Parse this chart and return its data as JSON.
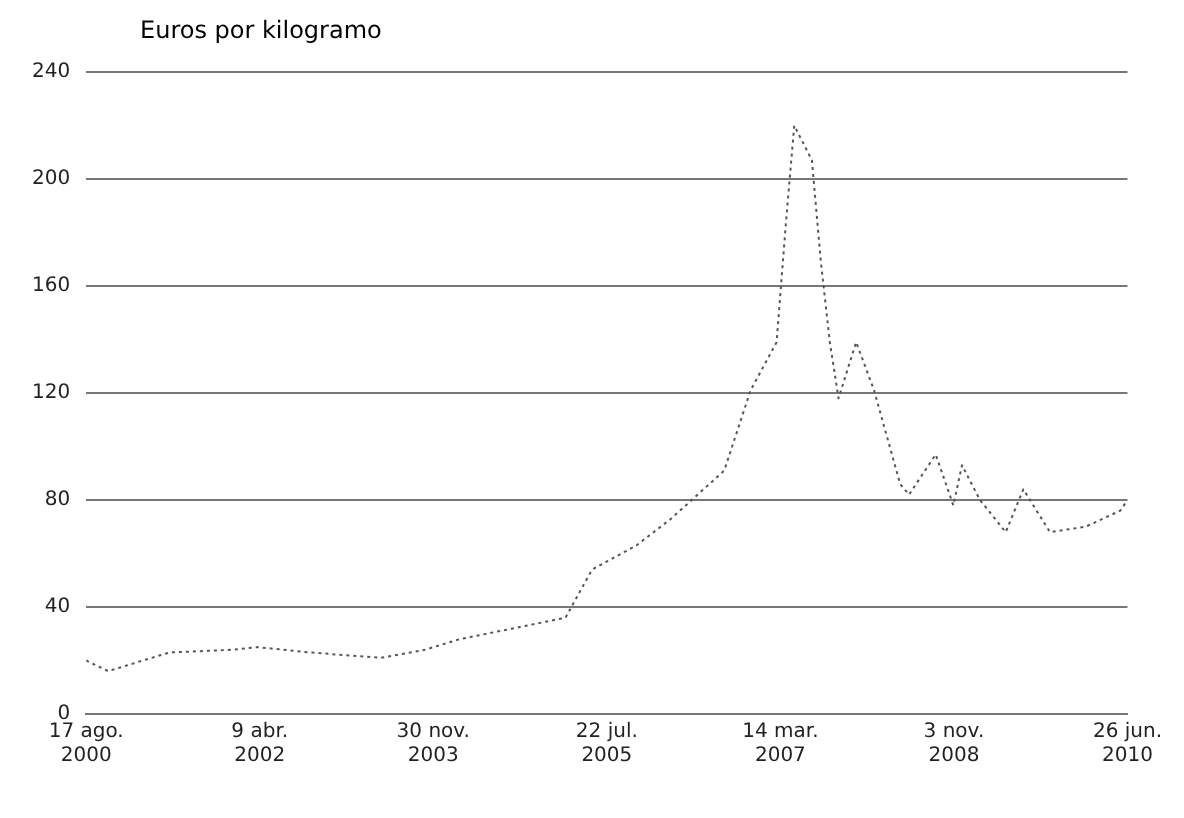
{
  "chart_data": {
    "type": "line",
    "ylabel": "Euros por kilogramo",
    "x": [
      "2000-08-17",
      "2000-11",
      "2001-03",
      "2001-06",
      "2002-01",
      "2002-04",
      "2002-10",
      "2003-06",
      "2003-11",
      "2004-03",
      "2004-09",
      "2005-03",
      "2005-06",
      "2005-11",
      "2006-03",
      "2006-09",
      "2006-12",
      "2007-03",
      "2007-04",
      "2007-05",
      "2007-07",
      "2007-08",
      "2007-09",
      "2007-10",
      "2007-12",
      "2008-02",
      "2008-05",
      "2008-06",
      "2008-09",
      "2008-11",
      "2008-12",
      "2009-02",
      "2009-05",
      "2009-07",
      "2009-10",
      "2010-02",
      "2010-06",
      "2010-06-26"
    ],
    "series": [
      {
        "color": "#555555",
        "values": [
          20,
          16,
          20,
          23,
          24,
          25,
          23,
          21,
          24,
          28,
          32,
          36,
          54,
          63,
          73,
          91,
          121,
          139,
          182,
          220,
          207,
          169,
          139,
          118,
          139,
          121,
          86,
          82,
          97,
          78,
          93,
          80,
          68,
          84,
          68,
          70,
          76,
          80
        ]
      }
    ],
    "xlim": [
      "2000-08-17",
      "2010-06-26"
    ],
    "xticks": [
      {
        "value": "2000-08-17",
        "label": "17 ago.\n2000"
      },
      {
        "value": "2002-04-09",
        "label": "9 abr.\n2002"
      },
      {
        "value": "2003-11-30",
        "label": "30 nov.\n2003"
      },
      {
        "value": "2005-07-22",
        "label": "22 jul.\n2005"
      },
      {
        "value": "2007-03-14",
        "label": "14 mar.\n2007"
      },
      {
        "value": "2008-11-03",
        "label": "3 nov.\n2008"
      },
      {
        "value": "2010-06-26",
        "label": "26 jun.\n2010"
      }
    ],
    "ylim": [
      0,
      240
    ],
    "yticks": [
      0,
      40,
      80,
      120,
      160,
      200,
      240
    ],
    "grid": "y",
    "legend": false,
    "marker": "none",
    "line_style": "dotted"
  }
}
